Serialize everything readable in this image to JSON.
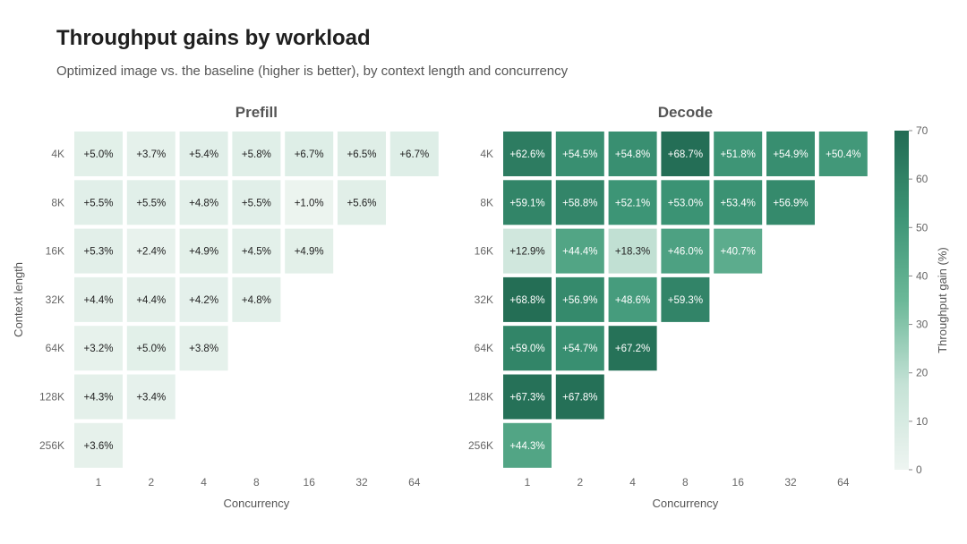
{
  "title": "Throughput gains by workload",
  "subtitle": "Optimized image vs. the baseline (higher is better), by context length and concurrency",
  "chart_data": [
    {
      "type": "heatmap",
      "title": "Prefill",
      "xlabel": "Concurrency",
      "ylabel": "Context length",
      "x_categories": [
        "1",
        "2",
        "4",
        "8",
        "16",
        "32",
        "64"
      ],
      "y_categories": [
        "4K",
        "8K",
        "16K",
        "32K",
        "64K",
        "128K",
        "256K"
      ],
      "values": [
        [
          5.0,
          3.7,
          5.4,
          5.8,
          6.7,
          6.5,
          6.7
        ],
        [
          5.5,
          5.5,
          4.8,
          5.5,
          1.0,
          5.6,
          null
        ],
        [
          5.3,
          2.4,
          4.9,
          4.5,
          4.9,
          null,
          null
        ],
        [
          4.4,
          4.4,
          4.2,
          4.8,
          null,
          null,
          null
        ],
        [
          3.2,
          5.0,
          3.8,
          null,
          null,
          null,
          null
        ],
        [
          4.3,
          3.4,
          null,
          null,
          null,
          null,
          null
        ],
        [
          3.6,
          null,
          null,
          null,
          null,
          null,
          null
        ]
      ],
      "labels": [
        [
          "+5.0%",
          "+3.7%",
          "+5.4%",
          "+5.8%",
          "+6.7%",
          "+6.5%",
          "+6.7%"
        ],
        [
          "+5.5%",
          "+5.5%",
          "+4.8%",
          "+5.5%",
          "+1.0%",
          "+5.6%",
          null
        ],
        [
          "+5.3%",
          "+2.4%",
          "+4.9%",
          "+4.5%",
          "+4.9%",
          null,
          null
        ],
        [
          "+4.4%",
          "+4.4%",
          "+4.2%",
          "+4.8%",
          null,
          null,
          null
        ],
        [
          "+3.2%",
          "+5.0%",
          "+3.8%",
          null,
          null,
          null,
          null
        ],
        [
          "+4.3%",
          "+3.4%",
          null,
          null,
          null,
          null,
          null
        ],
        [
          "+3.6%",
          null,
          null,
          null,
          null,
          null,
          null
        ]
      ]
    },
    {
      "type": "heatmap",
      "title": "Decode",
      "xlabel": "Concurrency",
      "ylabel": "",
      "x_categories": [
        "1",
        "2",
        "4",
        "8",
        "16",
        "32",
        "64"
      ],
      "y_categories": [
        "4K",
        "8K",
        "16K",
        "32K",
        "64K",
        "128K",
        "256K"
      ],
      "values": [
        [
          62.6,
          54.5,
          54.8,
          68.7,
          51.8,
          54.9,
          50.4
        ],
        [
          59.1,
          58.8,
          52.1,
          53.0,
          53.4,
          56.9,
          null
        ],
        [
          12.9,
          44.4,
          18.3,
          46.0,
          40.7,
          null,
          null
        ],
        [
          68.8,
          56.9,
          48.6,
          59.3,
          null,
          null,
          null
        ],
        [
          59.0,
          54.7,
          67.2,
          null,
          null,
          null,
          null
        ],
        [
          67.3,
          67.8,
          null,
          null,
          null,
          null,
          null
        ],
        [
          44.3,
          null,
          null,
          null,
          null,
          null,
          null
        ]
      ],
      "labels": [
        [
          "+62.6%",
          "+54.5%",
          "+54.8%",
          "+68.7%",
          "+51.8%",
          "+54.9%",
          "+50.4%"
        ],
        [
          "+59.1%",
          "+58.8%",
          "+52.1%",
          "+53.0%",
          "+53.4%",
          "+56.9%",
          null
        ],
        [
          "+12.9%",
          "+44.4%",
          "+18.3%",
          "+46.0%",
          "+40.7%",
          null,
          null
        ],
        [
          "+68.8%",
          "+56.9%",
          "+48.6%",
          "+59.3%",
          null,
          null,
          null
        ],
        [
          "+59.0%",
          "+54.7%",
          "+67.2%",
          null,
          null,
          null,
          null
        ],
        [
          "+67.3%",
          "+67.8%",
          null,
          null,
          null,
          null,
          null
        ],
        [
          "+44.3%",
          null,
          null,
          null,
          null,
          null,
          null
        ]
      ]
    }
  ],
  "colorbar": {
    "label": "Throughput gain (%)",
    "range": [
      0,
      70
    ],
    "ticks": [
      "0",
      "10",
      "20",
      "30",
      "40",
      "50",
      "60",
      "70"
    ],
    "color_low": "#eef5f1",
    "color_high": "#226b53"
  }
}
